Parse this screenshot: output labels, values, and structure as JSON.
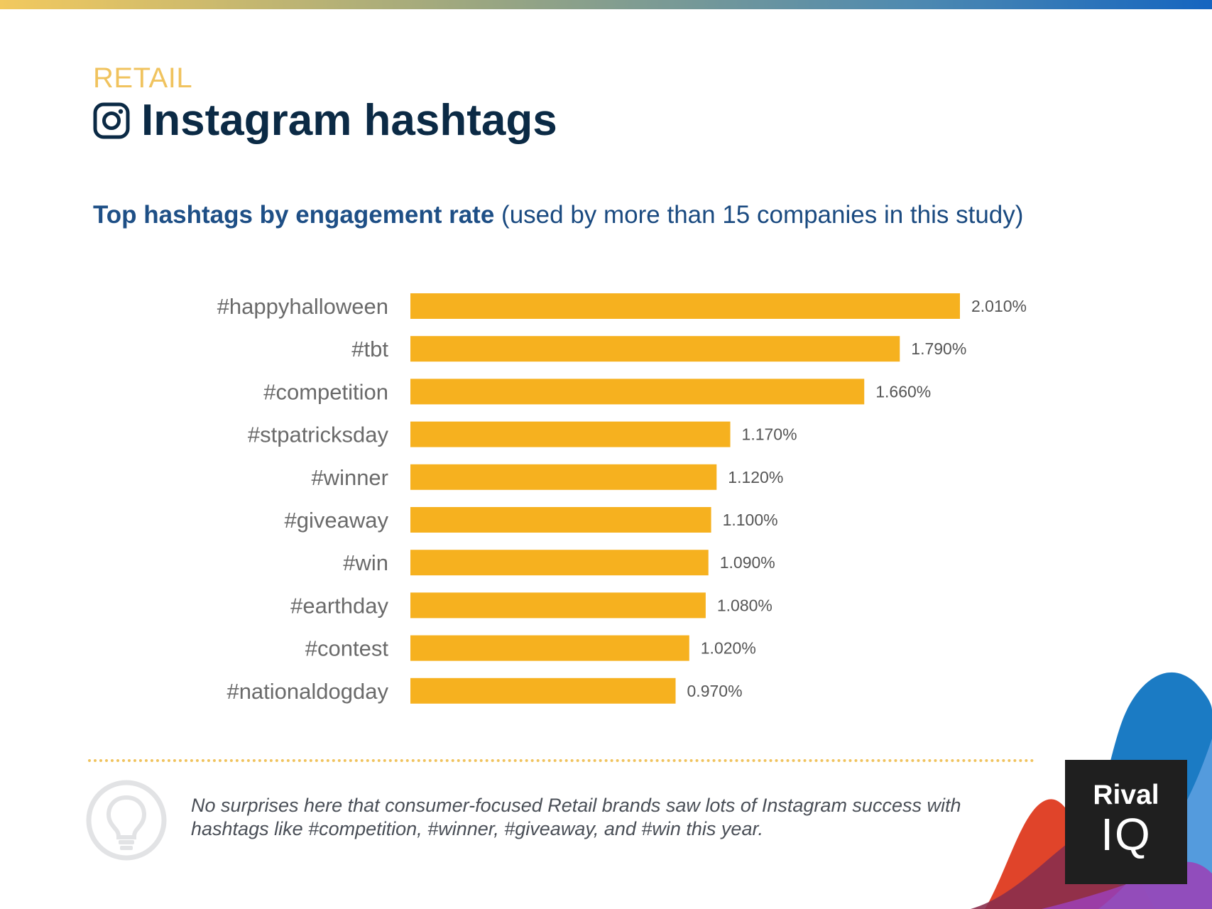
{
  "header": {
    "kicker": "RETAIL",
    "title": "Instagram hashtags",
    "icon": "instagram-icon"
  },
  "subtitle": {
    "bold": "Top hashtags by engagement rate",
    "rest": "(used by more than 15 companies in this study)"
  },
  "colors": {
    "bar": "#f6b11f",
    "title": "#0b2a45",
    "kicker": "#f0c35e",
    "subtitle": "#1e4f86",
    "label": "#6a6a6a"
  },
  "chart_data": {
    "type": "bar",
    "orientation": "horizontal",
    "title": "Top hashtags by engagement rate",
    "xlabel": "",
    "ylabel": "",
    "categories": [
      "#happyhalloween",
      "#tbt",
      "#competition",
      "#stpatricksday",
      "#winner",
      "#giveaway",
      "#win",
      "#earthday",
      "#contest",
      "#nationaldogday"
    ],
    "values": [
      2.01,
      1.79,
      1.66,
      1.17,
      1.12,
      1.1,
      1.09,
      1.08,
      1.02,
      0.97
    ],
    "value_labels": [
      "2.010%",
      "1.790%",
      "1.660%",
      "1.170%",
      "1.120%",
      "1.100%",
      "1.090%",
      "1.080%",
      "1.020%",
      "0.970%"
    ],
    "xlim": [
      0,
      2.01
    ],
    "grid": false,
    "legend": "none"
  },
  "footer": {
    "note": "No surprises here that consumer-focused Retail brands saw lots of Instagram success with hashtags like #competition, #winner, #giveaway, and #win this year.",
    "icon": "lightbulb-icon"
  },
  "logo": {
    "line1": "Rival",
    "line2": "IQ"
  }
}
